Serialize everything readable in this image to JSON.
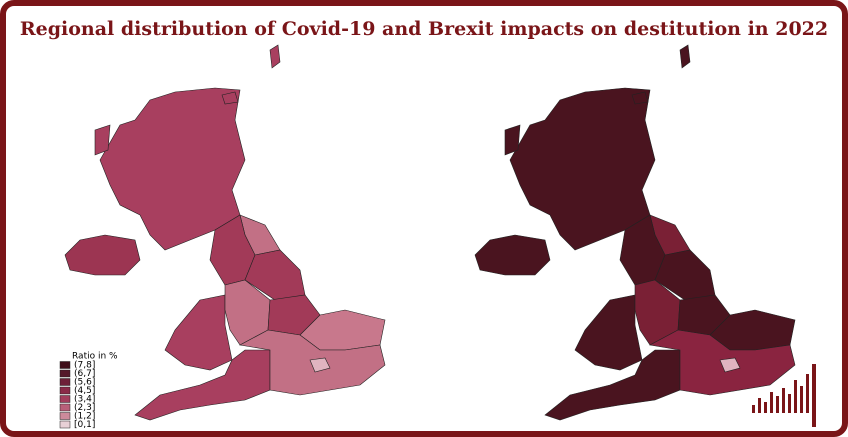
{
  "title": "Regional distribution of Covid-19 and Brexit impacts on destitution in 2022",
  "legend": {
    "title": "Ratio in %",
    "items": [
      {
        "label": "(7,8]",
        "color": "#3f0f1a"
      },
      {
        "label": "(6,7]",
        "color": "#55182a"
      },
      {
        "label": "(5,6]",
        "color": "#6e2038"
      },
      {
        "label": "(4,5]",
        "color": "#8a2a48"
      },
      {
        "label": "(3,4]",
        "color": "#a23d5c"
      },
      {
        "label": "(2,3]",
        "color": "#b85f79"
      },
      {
        "label": "(1,2]",
        "color": "#cc8a9b"
      },
      {
        "label": "[0,1]",
        "color": "#e8d0d6"
      }
    ]
  }
}
